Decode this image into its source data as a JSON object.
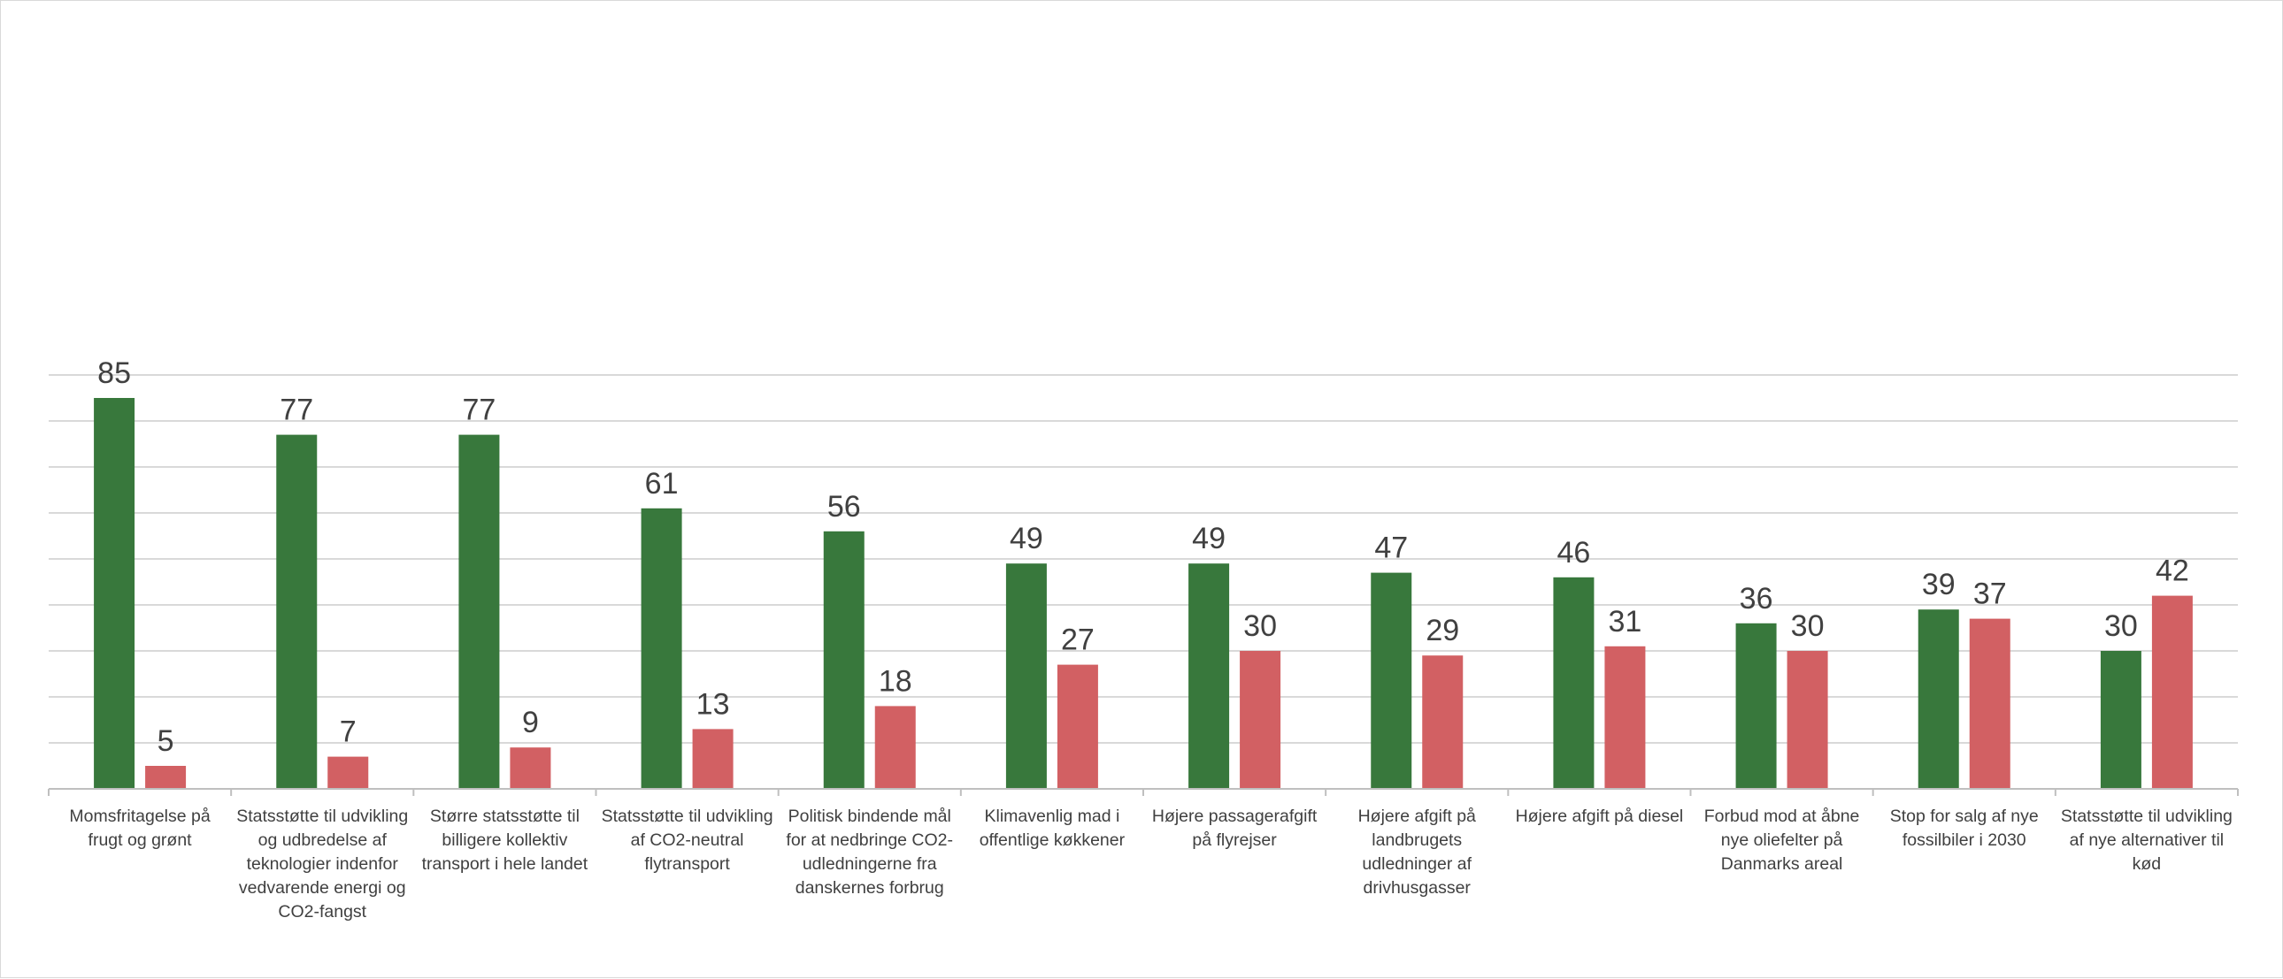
{
  "chart_data": {
    "type": "bar",
    "title": "",
    "xlabel": "",
    "ylabel": "",
    "ylim": [
      0,
      90
    ],
    "grid": true,
    "legend": "none",
    "categories": [
      "Momsfritagelse på frugt og grønt",
      "Statsstøtte til udvikling og udbredelse af teknologier indenfor vedvarende energi og CO2-fangst",
      "Større statsstøtte til billigere kollektiv transport i hele landet",
      "Statsstøtte til udvikling af CO2-neutral flytransport",
      "Politisk bindende mål for at nedbringe CO2-udledningerne fra danskernes forbrug",
      "Klimavenlig mad i offentlige køkkener",
      "Højere passagerafgift på flyrejser",
      "Højere afgift på landbrugets udledninger af drivhusgasser",
      "Højere afgift på diesel",
      "Forbud mod at åbne nye oliefelter på Danmarks areal",
      "Stop for salg af nye fossilbiler i 2030",
      "Statsstøtte til udvikling af nye alternativer til kød"
    ],
    "series": [
      {
        "color": "#38783c",
        "values": [
          85,
          77,
          77,
          61,
          56,
          49,
          49,
          47,
          46,
          36,
          39,
          30
        ]
      },
      {
        "color": "#d26063",
        "values": [
          5,
          7,
          9,
          13,
          18,
          27,
          30,
          29,
          31,
          30,
          37,
          42
        ]
      }
    ]
  }
}
